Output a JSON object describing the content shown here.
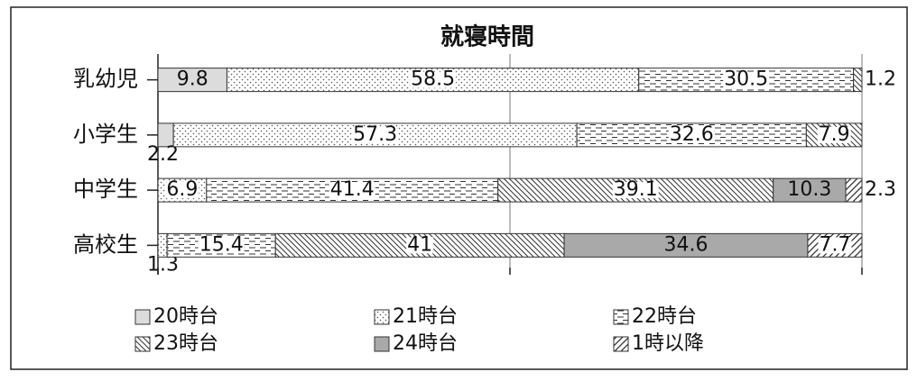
{
  "chart_data": {
    "type": "stacked-bar-horizontal",
    "title": "就寝時間",
    "categories": [
      "乳幼児",
      "小学生",
      "中学生",
      "高校生"
    ],
    "series": [
      {
        "name": "20時台",
        "color": "#dcdcdc",
        "pattern": "solid",
        "values": [
          9.8,
          2.2,
          null,
          null
        ]
      },
      {
        "name": "21時台",
        "color": "#ffffff",
        "pattern": "dots",
        "values": [
          58.5,
          57.3,
          6.9,
          1.3
        ]
      },
      {
        "name": "22時台",
        "color": "#ffffff",
        "pattern": "dashes",
        "values": [
          30.5,
          32.6,
          41.4,
          15.4
        ]
      },
      {
        "name": "23時台",
        "color": "#ffffff",
        "pattern": "backslash",
        "values": [
          1.2,
          7.9,
          39.1,
          41
        ]
      },
      {
        "name": "24時台",
        "color": "#a9a9a9",
        "pattern": "solid",
        "values": [
          null,
          null,
          10.3,
          34.6
        ]
      },
      {
        "name": "1時以降",
        "color": "#ffffff",
        "pattern": "slash",
        "values": [
          null,
          null,
          2.3,
          7.7
        ]
      }
    ],
    "xlim": [
      0,
      100
    ],
    "xticks": [
      0,
      50,
      100
    ]
  }
}
